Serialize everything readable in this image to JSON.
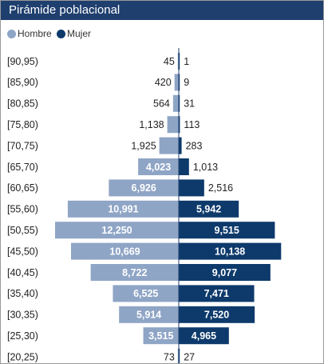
{
  "title": "Pirámide poblacional",
  "legend": {
    "hombre_label": "Hombre",
    "mujer_label": "Mujer"
  },
  "colors": {
    "header_bg": "#1f3f6e",
    "hombre": "#8fa5c6",
    "mujer": "#0d3a6b"
  },
  "chart_data": {
    "type": "bar",
    "orientation": "horizontal-pyramid",
    "categories": [
      "[90,95)",
      "[85,90)",
      "[80,85)",
      "[75,80)",
      "[70,75)",
      "[65,70)",
      "[60,65)",
      "[55,60)",
      "[50,55)",
      "[45,50)",
      "[40,45)",
      "[35,40)",
      "[30,35)",
      "[25,30)",
      "[20,25)"
    ],
    "series": [
      {
        "name": "Hombre",
        "values": [
          45,
          420,
          564,
          1138,
          1925,
          4023,
          6926,
          10991,
          12250,
          10669,
          8722,
          6525,
          5914,
          3515,
          73
        ],
        "labels": [
          "45",
          "420",
          "564",
          "1,138",
          "1,925",
          "4,023",
          "6,926",
          "10,991",
          "12,250",
          "10,669",
          "8,722",
          "6,525",
          "5,914",
          "3,515",
          "73"
        ]
      },
      {
        "name": "Mujer",
        "values": [
          1,
          9,
          31,
          113,
          283,
          1013,
          2516,
          5942,
          9515,
          10138,
          9077,
          7471,
          7520,
          4965,
          27
        ],
        "labels": [
          "1",
          "9",
          "31",
          "113",
          "283",
          "1,013",
          "2,516",
          "5,942",
          "9,515",
          "10,138",
          "9,077",
          "7,471",
          "7,520",
          "4,965",
          "27"
        ]
      }
    ],
    "legend_position": "top-left",
    "grid": false
  }
}
